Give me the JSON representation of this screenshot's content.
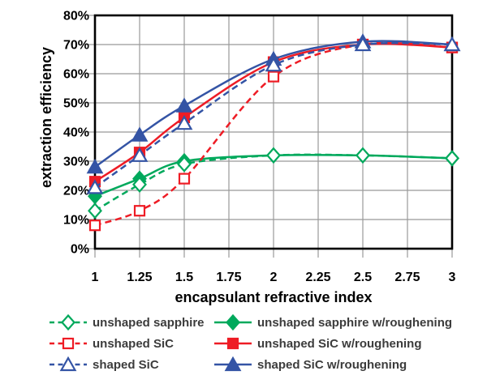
{
  "chart_data": {
    "type": "line",
    "title": "",
    "xlabel": "encapsulant refractive index",
    "ylabel": "extraction efficiency",
    "xlim": [
      1,
      3
    ],
    "ylim": [
      0,
      80
    ],
    "x_ticks": [
      1,
      1.25,
      1.5,
      1.75,
      2,
      2.25,
      2.5,
      2.75,
      3
    ],
    "x_tick_labels": [
      "1",
      "1.25",
      "1.5",
      "1.75",
      "2",
      "2.25",
      "2.5",
      "2.75",
      "3"
    ],
    "y_ticks": [
      0,
      10,
      20,
      30,
      40,
      50,
      60,
      70,
      80
    ],
    "y_tick_labels": [
      "0%",
      "10%",
      "20%",
      "30%",
      "40%",
      "50%",
      "60%",
      "70%",
      "80%"
    ],
    "grid": true,
    "legend_position": "bottom",
    "x": [
      1,
      1.25,
      1.5,
      2,
      2.5,
      3
    ],
    "series": [
      {
        "name": "unshaped sapphire",
        "color": "#00a95c",
        "line": "dashed",
        "marker": "diamond",
        "marker_fill": "open",
        "values": [
          13,
          22,
          29,
          32,
          32,
          31
        ]
      },
      {
        "name": "unshaped SiC",
        "color": "#ee1c25",
        "line": "dashed",
        "marker": "square",
        "marker_fill": "open",
        "values": [
          8,
          13,
          24,
          59,
          70,
          69
        ]
      },
      {
        "name": "shaped SiC",
        "color": "#3454a5",
        "line": "dashed",
        "marker": "triangle",
        "marker_fill": "open",
        "values": [
          21,
          32,
          43,
          63,
          70,
          70
        ]
      },
      {
        "name": "unshaped sapphire w/roughening",
        "color": "#00a95c",
        "line": "solid",
        "marker": "diamond",
        "marker_fill": "filled",
        "values": [
          18,
          24,
          30,
          32,
          32,
          31
        ]
      },
      {
        "name": "unshaped SiC w/roughening",
        "color": "#ee1c25",
        "line": "solid",
        "marker": "square",
        "marker_fill": "filled",
        "values": [
          23,
          33,
          45,
          64,
          70,
          69
        ]
      },
      {
        "name": "shaped SiC w/roughening",
        "color": "#3454a5",
        "line": "solid",
        "marker": "triangle",
        "marker_fill": "filled",
        "values": [
          28,
          39,
          49,
          65,
          71,
          70
        ]
      }
    ],
    "draw_order": [
      3,
      0,
      4,
      1,
      5,
      2
    ],
    "axis_color": "#000000",
    "grid_color": "#999999",
    "tick_label_color": "#000000"
  },
  "legend": {
    "rows": [
      [
        0,
        3
      ],
      [
        1,
        4
      ],
      [
        2,
        5
      ]
    ]
  }
}
